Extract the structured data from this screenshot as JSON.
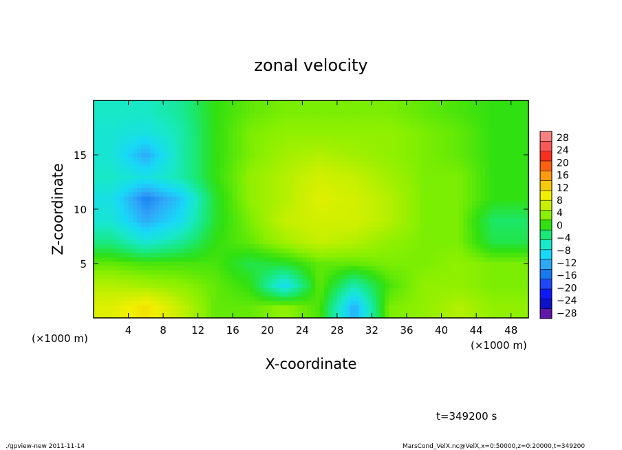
{
  "chart_data": {
    "type": "heatmap",
    "title": "zonal velocity",
    "xlabel": "X-coordinate",
    "ylabel": "Z-coordinate",
    "x_unit_left": "(×1000 m)",
    "x_unit_right": "(×1000 m)",
    "xlim": [
      0,
      50
    ],
    "ylim": [
      0,
      20
    ],
    "xticks": [
      4,
      8,
      12,
      16,
      20,
      24,
      28,
      32,
      36,
      40,
      44,
      48
    ],
    "yticks": [
      5,
      10,
      15
    ],
    "grid": false,
    "colorbar": {
      "labels": [
        "28",
        "24",
        "20",
        "16",
        "12",
        "8",
        "4",
        "0",
        "−4",
        "−8",
        "−12",
        "−16",
        "−20",
        "−24",
        "−28"
      ],
      "colors": [
        "#f88080",
        "#f85858",
        "#f83020",
        "#fa6010",
        "#fa9a10",
        "#f6c808",
        "#f2f000",
        "#c6f000",
        "#88f000",
        "#30e010",
        "#18e878",
        "#18e8c8",
        "#18d8f8",
        "#30a8f8",
        "#1878f0",
        "#2048f8",
        "#1018f8",
        "#1010c8",
        "#6018a8"
      ]
    },
    "field": {
      "x": [
        2,
        6,
        10,
        14,
        18,
        22,
        26,
        30,
        34,
        38,
        42,
        46
      ],
      "z": [
        1,
        3,
        5,
        7,
        9,
        11,
        13,
        15,
        17,
        19
      ],
      "values": [
        [
          9,
          12,
          7,
          2,
          2,
          4,
          1,
          -14,
          3,
          4,
          6,
          4
        ],
        [
          6,
          5,
          4,
          2,
          0,
          -10,
          2,
          -6,
          1,
          4,
          4,
          3
        ],
        [
          2,
          1,
          1,
          1,
          -2,
          -1,
          2,
          2,
          3,
          3,
          4,
          3
        ],
        [
          -4,
          -8,
          -5,
          0,
          2,
          5,
          7,
          6,
          4,
          3,
          3,
          -2
        ],
        [
          -8,
          -14,
          -10,
          -1,
          3,
          7,
          8,
          8,
          6,
          3,
          3,
          -3
        ],
        [
          -9,
          -17,
          -12,
          -1,
          4,
          6,
          9,
          8,
          6,
          3,
          3,
          0
        ],
        [
          -7,
          -9,
          -6,
          0,
          4,
          6,
          8,
          7,
          5,
          3,
          3,
          0
        ],
        [
          -8,
          -14,
          -6,
          0,
          3,
          5,
          6,
          5,
          4,
          3,
          2,
          0
        ],
        [
          -8,
          -9,
          -6,
          0,
          3,
          4,
          4,
          4,
          4,
          3,
          2,
          0
        ],
        [
          -7,
          -7,
          -5,
          0,
          2,
          3,
          3,
          3,
          3,
          2,
          1,
          0
        ]
      ]
    }
  },
  "time_label": "t=349200 s",
  "footer_left": "./gpview-new  2011-11-14",
  "footer_right": "MarsCond_VelX.nc@VelX,x=0:50000,z=0:20000,t=349200"
}
